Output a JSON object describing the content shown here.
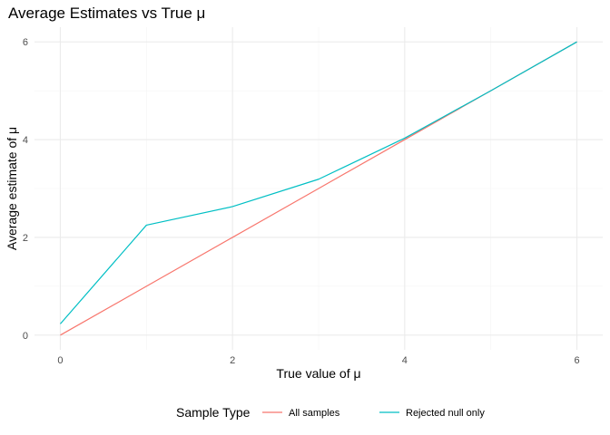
{
  "chart_data": {
    "type": "line",
    "title": "Average Estimates vs True μ",
    "xlabel": "True value of μ",
    "ylabel": "Average estimate of μ",
    "xlim": [
      -0.3,
      6.3
    ],
    "ylim": [
      -0.3,
      6.3
    ],
    "x_ticks": [
      0,
      2,
      4,
      6
    ],
    "y_ticks": [
      0,
      2,
      4,
      6
    ],
    "x_minor": [
      1,
      3,
      5
    ],
    "y_minor": [
      1,
      3,
      5
    ],
    "grid": true,
    "legend": {
      "title": "Sample Type",
      "position": "bottom"
    },
    "x": [
      0,
      1,
      2,
      3,
      4,
      5,
      6
    ],
    "series": [
      {
        "name": "All samples",
        "color": "#F8766D",
        "values": [
          0.0,
          1.0,
          2.0,
          3.0,
          4.0,
          5.0,
          6.0
        ]
      },
      {
        "name": "Rejected null only",
        "color": "#00BFC4",
        "values": [
          0.23,
          2.25,
          2.63,
          3.19,
          4.03,
          5.0,
          6.0
        ]
      }
    ]
  }
}
